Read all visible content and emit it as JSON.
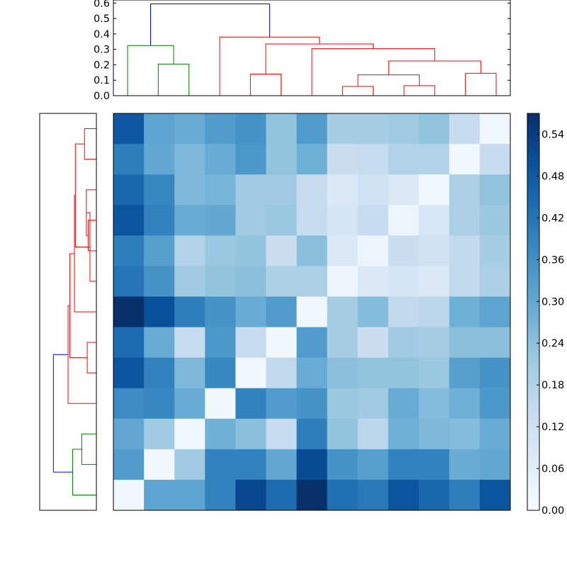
{
  "chart_data": [
    {
      "type": "dendrogram",
      "orientation": "top",
      "ylim": [
        0,
        0.6
      ],
      "yticks": [
        "0.0",
        "0.1",
        "0.2",
        "0.3",
        "0.4",
        "0.5",
        "0.6"
      ],
      "colors": {
        "root": "#0000ff",
        "cluster_a": "#008000",
        "cluster_b": "#ff0000"
      },
      "leaf_count": 13,
      "merges": [
        {
          "id": "a",
          "left": 0,
          "right": 1,
          "h": 0.0
        },
        {
          "id": "g1",
          "left": 1,
          "right": 2,
          "h": 0.205,
          "color": "cluster_a"
        },
        {
          "id": "g2",
          "left": 0,
          "right": "g1",
          "h": 0.325,
          "color": "cluster_a"
        },
        {
          "id": "r1",
          "left": 4,
          "right": 5,
          "h": 0.14,
          "color": "cluster_b"
        },
        {
          "id": "r2",
          "left": 7,
          "right": 8,
          "h": 0.06,
          "color": "cluster_b"
        },
        {
          "id": "r3",
          "left": 9,
          "right": 10,
          "h": 0.065,
          "color": "cluster_b"
        },
        {
          "id": "r4",
          "left": "r2",
          "right": "r3",
          "h": 0.135,
          "color": "cluster_b"
        },
        {
          "id": "r5",
          "left": 11,
          "right": 12,
          "h": 0.145,
          "color": "cluster_b"
        },
        {
          "id": "r6",
          "left": "r4",
          "right": "r5",
          "h": 0.225,
          "color": "cluster_b"
        },
        {
          "id": "r7",
          "left": 6,
          "right": "r6",
          "h": 0.305,
          "color": "cluster_b"
        },
        {
          "id": "r8",
          "left": "r1",
          "right": "r7",
          "h": 0.335,
          "color": "cluster_b"
        },
        {
          "id": "r9",
          "left": 3,
          "right": "r8",
          "h": 0.38,
          "color": "cluster_b"
        },
        {
          "id": "root",
          "left": "g2",
          "right": "r9",
          "h": 0.595,
          "color": "root"
        }
      ]
    },
    {
      "type": "dendrogram",
      "orientation": "left",
      "leaf_count": 13,
      "colors": {
        "root": "#0000ff",
        "cluster_a": "#008000",
        "cluster_b": "#ff0000"
      }
    },
    {
      "type": "heatmap",
      "rows": 13,
      "cols": 13,
      "vmin": 0.0,
      "vmax": 0.57,
      "colormap": "Blues",
      "values": [
        [
          0.48,
          0.31,
          0.29,
          0.33,
          0.35,
          0.23,
          0.33,
          0.2,
          0.2,
          0.21,
          0.23,
          0.14,
          0.02
        ],
        [
          0.4,
          0.3,
          0.26,
          0.29,
          0.34,
          0.23,
          0.28,
          0.13,
          0.14,
          0.18,
          0.18,
          0.02,
          0.14
        ],
        [
          0.45,
          0.38,
          0.26,
          0.27,
          0.21,
          0.21,
          0.14,
          0.08,
          0.11,
          0.08,
          0.02,
          0.19,
          0.23
        ],
        [
          0.49,
          0.39,
          0.29,
          0.3,
          0.21,
          0.22,
          0.14,
          0.1,
          0.14,
          0.03,
          0.09,
          0.19,
          0.22
        ],
        [
          0.4,
          0.32,
          0.18,
          0.22,
          0.23,
          0.13,
          0.24,
          0.08,
          0.03,
          0.13,
          0.11,
          0.15,
          0.2
        ],
        [
          0.42,
          0.35,
          0.21,
          0.23,
          0.24,
          0.19,
          0.19,
          0.03,
          0.08,
          0.1,
          0.08,
          0.15,
          0.19
        ],
        [
          0.57,
          0.5,
          0.4,
          0.35,
          0.29,
          0.33,
          0.02,
          0.2,
          0.25,
          0.15,
          0.16,
          0.28,
          0.31
        ],
        [
          0.44,
          0.29,
          0.14,
          0.34,
          0.14,
          0.02,
          0.33,
          0.2,
          0.13,
          0.21,
          0.2,
          0.24,
          0.24
        ],
        [
          0.49,
          0.39,
          0.26,
          0.38,
          0.02,
          0.15,
          0.29,
          0.24,
          0.23,
          0.23,
          0.22,
          0.32,
          0.35
        ],
        [
          0.37,
          0.38,
          0.29,
          0.02,
          0.39,
          0.33,
          0.35,
          0.22,
          0.21,
          0.29,
          0.25,
          0.28,
          0.34
        ],
        [
          0.3,
          0.21,
          0.02,
          0.28,
          0.24,
          0.14,
          0.4,
          0.23,
          0.16,
          0.28,
          0.26,
          0.25,
          0.29
        ],
        [
          0.33,
          0.02,
          0.21,
          0.39,
          0.39,
          0.3,
          0.51,
          0.35,
          0.32,
          0.39,
          0.39,
          0.29,
          0.3
        ],
        [
          0.02,
          0.31,
          0.31,
          0.39,
          0.52,
          0.44,
          0.57,
          0.43,
          0.41,
          0.49,
          0.45,
          0.4,
          0.49
        ]
      ]
    },
    {
      "type": "colorbar",
      "ticks": [
        "0.00",
        "0.06",
        "0.12",
        "0.18",
        "0.24",
        "0.30",
        "0.36",
        "0.42",
        "0.48",
        "0.54"
      ],
      "range": [
        0.0,
        0.57
      ],
      "colormap": "Blues"
    }
  ]
}
